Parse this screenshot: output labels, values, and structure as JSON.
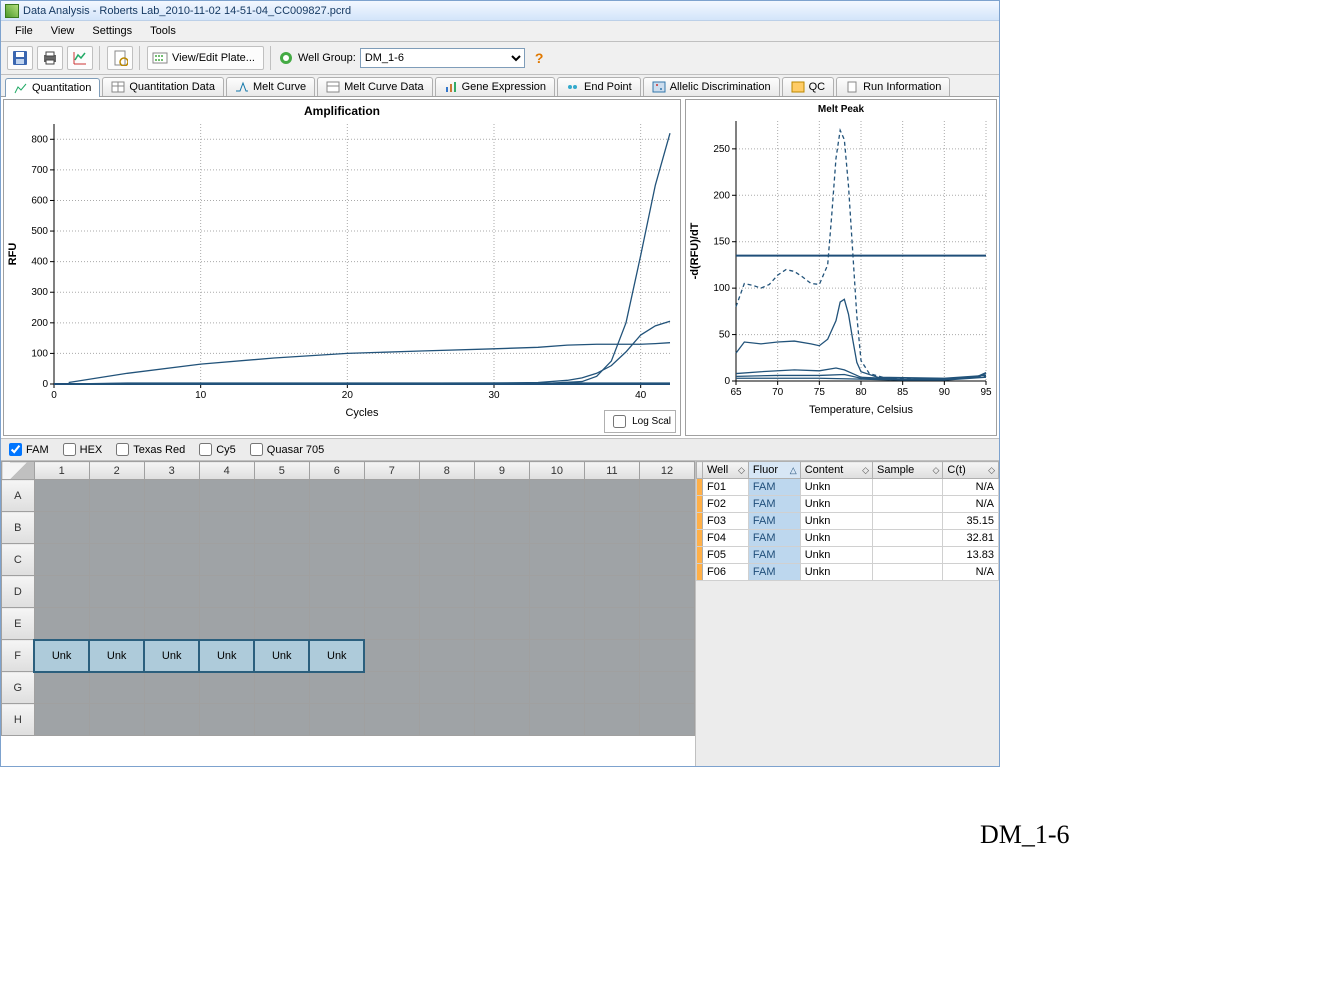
{
  "window": {
    "title": "Data Analysis - Roberts Lab_2010-11-02 14-51-04_CC009827.pcrd"
  },
  "menu": {
    "file": "File",
    "view": "View",
    "settings": "Settings",
    "tools": "Tools"
  },
  "toolbar": {
    "view_edit_plate": "View/Edit Plate...",
    "well_group_label": "Well Group:",
    "well_group_value": "DM_1-6"
  },
  "tabs": {
    "quant": "Quantitation",
    "quantdata": "Quantitation Data",
    "melt": "Melt Curve",
    "meltdata": "Melt Curve Data",
    "gene": "Gene Expression",
    "endpoint": "End Point",
    "allelic": "Allelic Discrimination",
    "qc": "QC",
    "runinfo": "Run Information"
  },
  "amp_chart": {
    "type": "line",
    "title": "Amplification",
    "xlabel": "Cycles",
    "ylabel": "RFU",
    "xlim": [
      0,
      42
    ],
    "ylim": [
      0,
      850
    ],
    "xticks": [
      0,
      10,
      20,
      30,
      40
    ],
    "yticks": [
      0,
      100,
      200,
      300,
      400,
      500,
      600,
      700,
      800
    ],
    "grid_color": "#888888",
    "line_color": "#22537a",
    "threshold_y": 0,
    "series": [
      {
        "name": "s1",
        "data": [
          [
            1,
            0
          ],
          [
            5,
            2
          ],
          [
            10,
            2
          ],
          [
            20,
            2
          ],
          [
            30,
            2
          ],
          [
            35,
            2
          ],
          [
            38,
            2
          ],
          [
            40,
            2
          ],
          [
            42,
            2
          ]
        ]
      },
      {
        "name": "s2",
        "data": [
          [
            1,
            0
          ],
          [
            5,
            3
          ],
          [
            10,
            3
          ],
          [
            20,
            3
          ],
          [
            30,
            3
          ],
          [
            35,
            3
          ],
          [
            38,
            3
          ],
          [
            40,
            3
          ],
          [
            42,
            3
          ]
        ]
      },
      {
        "name": "s3",
        "data": [
          [
            1,
            5
          ],
          [
            5,
            35
          ],
          [
            10,
            65
          ],
          [
            15,
            85
          ],
          [
            20,
            100
          ],
          [
            25,
            108
          ],
          [
            30,
            115
          ],
          [
            33,
            120
          ],
          [
            35,
            127
          ],
          [
            37,
            130
          ],
          [
            39,
            130
          ],
          [
            40,
            130
          ],
          [
            41,
            132
          ],
          [
            42,
            135
          ]
        ]
      },
      {
        "name": "s4",
        "data": [
          [
            1,
            0
          ],
          [
            20,
            2
          ],
          [
            30,
            3
          ],
          [
            33,
            5
          ],
          [
            35,
            12
          ],
          [
            36,
            20
          ],
          [
            37,
            35
          ],
          [
            38,
            60
          ],
          [
            39,
            105
          ],
          [
            40,
            160
          ],
          [
            41,
            190
          ],
          [
            42,
            205
          ]
        ]
      },
      {
        "name": "s5",
        "data": [
          [
            1,
            0
          ],
          [
            25,
            1
          ],
          [
            30,
            2
          ],
          [
            34,
            3
          ],
          [
            36,
            8
          ],
          [
            37,
            25
          ],
          [
            38,
            75
          ],
          [
            39,
            200
          ],
          [
            40,
            420
          ],
          [
            41,
            650
          ],
          [
            42,
            820
          ]
        ]
      }
    ],
    "log_scale_label": "Log Scal"
  },
  "melt_chart": {
    "type": "line",
    "title": "Melt Peak",
    "xlabel": "Temperature, Celsius",
    "ylabel": "-d(RFU)/dT",
    "xlim": [
      65,
      95
    ],
    "ylim": [
      0,
      280
    ],
    "xticks": [
      65,
      70,
      75,
      80,
      85,
      90,
      95
    ],
    "yticks": [
      0,
      50,
      100,
      150,
      200,
      250
    ],
    "grid_color": "#888888",
    "line_color": "#22537a",
    "threshold_y": 135,
    "series": [
      {
        "name": "m1",
        "dash": true,
        "data": [
          [
            65,
            80
          ],
          [
            66,
            105
          ],
          [
            67,
            103
          ],
          [
            68,
            100
          ],
          [
            69,
            104
          ],
          [
            70,
            114
          ],
          [
            71,
            120
          ],
          [
            72,
            118
          ],
          [
            73,
            112
          ],
          [
            74,
            105
          ],
          [
            75,
            104
          ],
          [
            76,
            125
          ],
          [
            76.5,
            180
          ],
          [
            77,
            240
          ],
          [
            77.5,
            270
          ],
          [
            78,
            260
          ],
          [
            78.5,
            210
          ],
          [
            79,
            140
          ],
          [
            79.5,
            70
          ],
          [
            80,
            22
          ],
          [
            81,
            8
          ],
          [
            83,
            3
          ],
          [
            90,
            2
          ],
          [
            95,
            5
          ]
        ]
      },
      {
        "name": "m2",
        "data": [
          [
            65,
            30
          ],
          [
            66,
            42
          ],
          [
            68,
            40
          ],
          [
            70,
            42
          ],
          [
            72,
            43
          ],
          [
            74,
            40
          ],
          [
            75,
            38
          ],
          [
            76,
            45
          ],
          [
            77,
            65
          ],
          [
            77.5,
            85
          ],
          [
            78,
            88
          ],
          [
            78.5,
            72
          ],
          [
            79,
            45
          ],
          [
            79.5,
            20
          ],
          [
            80,
            10
          ],
          [
            82,
            4
          ],
          [
            90,
            3
          ],
          [
            95,
            6
          ]
        ]
      },
      {
        "name": "m3",
        "data": [
          [
            65,
            8
          ],
          [
            68,
            10
          ],
          [
            72,
            12
          ],
          [
            75,
            11
          ],
          [
            77,
            14
          ],
          [
            78,
            12
          ],
          [
            79,
            8
          ],
          [
            80,
            4
          ],
          [
            85,
            2
          ],
          [
            90,
            2
          ],
          [
            94,
            5
          ],
          [
            95,
            9
          ]
        ]
      },
      {
        "name": "m4",
        "data": [
          [
            65,
            5
          ],
          [
            70,
            6
          ],
          [
            75,
            6
          ],
          [
            78,
            7
          ],
          [
            80,
            3
          ],
          [
            85,
            2
          ],
          [
            90,
            2
          ],
          [
            94,
            4
          ],
          [
            95,
            8
          ]
        ]
      },
      {
        "name": "m5",
        "data": [
          [
            65,
            3
          ],
          [
            70,
            3
          ],
          [
            75,
            3
          ],
          [
            80,
            2
          ],
          [
            85,
            1
          ],
          [
            90,
            1
          ],
          [
            95,
            4
          ]
        ]
      }
    ]
  },
  "fluors": {
    "fam": {
      "label": "FAM",
      "checked": true
    },
    "hex": {
      "label": "HEX",
      "checked": false
    },
    "tex": {
      "label": "Texas Red",
      "checked": false
    },
    "cy5": {
      "label": "Cy5",
      "checked": false
    },
    "q705": {
      "label": "Quasar 705",
      "checked": false
    }
  },
  "plate": {
    "cols": [
      "1",
      "2",
      "3",
      "4",
      "5",
      "6",
      "7",
      "8",
      "9",
      "10",
      "11",
      "12"
    ],
    "rows": [
      "A",
      "B",
      "C",
      "D",
      "E",
      "F",
      "G",
      "H"
    ],
    "unk_label": "Unk",
    "selected_row": "F",
    "selected_cols": 6
  },
  "grid": {
    "headers": {
      "well": "Well",
      "fluor": "Fluor",
      "content": "Content",
      "sample": "Sample",
      "ct": "C(t)"
    },
    "sort_col": "fluor",
    "rows": [
      {
        "well": "F01",
        "fluor": "FAM",
        "content": "Unkn",
        "sample": "",
        "ct": "N/A"
      },
      {
        "well": "F02",
        "fluor": "FAM",
        "content": "Unkn",
        "sample": "",
        "ct": "N/A"
      },
      {
        "well": "F03",
        "fluor": "FAM",
        "content": "Unkn",
        "sample": "",
        "ct": "35.15"
      },
      {
        "well": "F04",
        "fluor": "FAM",
        "content": "Unkn",
        "sample": "",
        "ct": "32.81"
      },
      {
        "well": "F05",
        "fluor": "FAM",
        "content": "Unkn",
        "sample": "",
        "ct": "13.83"
      },
      {
        "well": "F06",
        "fluor": "FAM",
        "content": "Unkn",
        "sample": "",
        "ct": "N/A"
      }
    ]
  },
  "footer_label": "DM_1-6",
  "colors": {
    "line": "#22537a",
    "threshold": "#1f4e79",
    "grid": "#d0d0d0",
    "axis": "#000000",
    "bg": "#ffffff"
  }
}
